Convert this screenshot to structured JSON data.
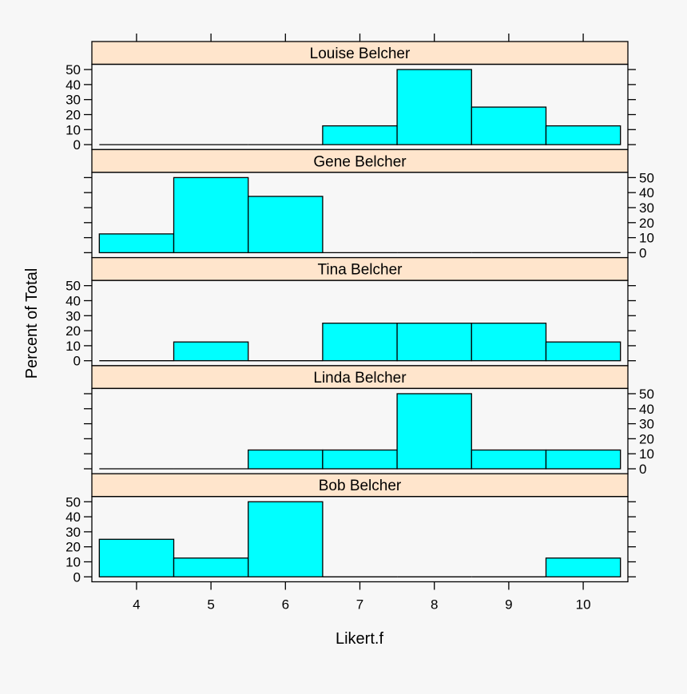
{
  "chart_data": {
    "type": "bar",
    "layout": "lattice histogram, 5 stacked panels",
    "xlabel": "Likert.f",
    "ylabel": "Percent of Total",
    "categories": [
      4,
      5,
      6,
      7,
      8,
      9,
      10
    ],
    "xlim": [
      3.4,
      10.6
    ],
    "ylim": [
      -3.3,
      53.5
    ],
    "yticks": [
      0,
      10,
      20,
      30,
      40,
      50
    ],
    "xticks": [
      4,
      5,
      6,
      7,
      8,
      9,
      10
    ],
    "bar_color": "#00ffff",
    "strip_color": "#ffe5cc",
    "panels": [
      {
        "name": "Louise Belcher",
        "values": [
          0,
          0,
          0,
          12.5,
          50,
          25,
          12.5
        ],
        "ylabels_side": "left"
      },
      {
        "name": "Gene Belcher",
        "values": [
          12.5,
          50,
          37.5,
          0,
          0,
          0,
          0
        ],
        "ylabels_side": "right"
      },
      {
        "name": "Tina Belcher",
        "values": [
          0,
          12.5,
          0,
          25,
          25,
          25,
          12.5
        ],
        "ylabels_side": "left"
      },
      {
        "name": "Linda Belcher",
        "values": [
          0,
          0,
          12.5,
          12.5,
          50,
          12.5,
          12.5
        ],
        "ylabels_side": "right"
      },
      {
        "name": "Bob Belcher",
        "values": [
          25,
          12.5,
          50,
          0,
          0,
          0,
          12.5
        ],
        "ylabels_side": "left"
      }
    ]
  }
}
